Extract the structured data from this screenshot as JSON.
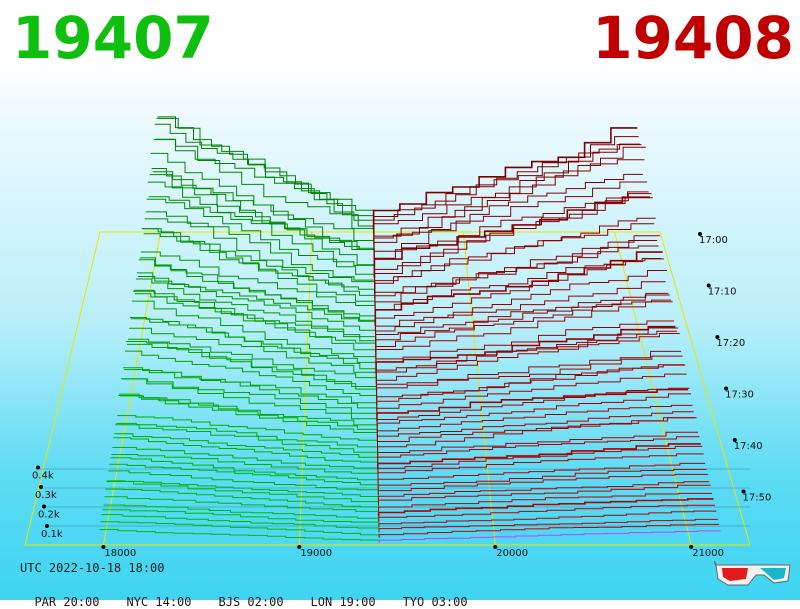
{
  "header": {
    "bid_price": "19407",
    "ask_price": "19408",
    "bid_color": "#0ebf0e",
    "ask_color": "#c00000"
  },
  "footer": {
    "utc_label": "UTC 2022-10-18 18:00",
    "timezones": [
      {
        "label": "PAR 20:00"
      },
      {
        "label": "NYC 14:00"
      },
      {
        "label": "BJS 02:00"
      },
      {
        "label": "LON 19:00"
      },
      {
        "label": "TYO 03:00"
      }
    ],
    "glasses_icon": "3d-glasses-icon"
  },
  "chart_data": {
    "type": "area",
    "description_type": "3d order-book depth history",
    "x_ticks": [
      "18000",
      "19000",
      "20000",
      "21000"
    ],
    "x_range": [
      17600,
      21300
    ],
    "depth_ticks": [
      "0.1k",
      "0.2k",
      "0.3k",
      "0.4k"
    ],
    "time_ticks": [
      "17:00",
      "17:10",
      "17:20",
      "17:30",
      "17:40",
      "17:50"
    ],
    "mid_price": 19407.5,
    "series": [
      {
        "side": "bid",
        "color": "#00a000"
      },
      {
        "side": "ask",
        "color": "#b00000"
      }
    ]
  }
}
